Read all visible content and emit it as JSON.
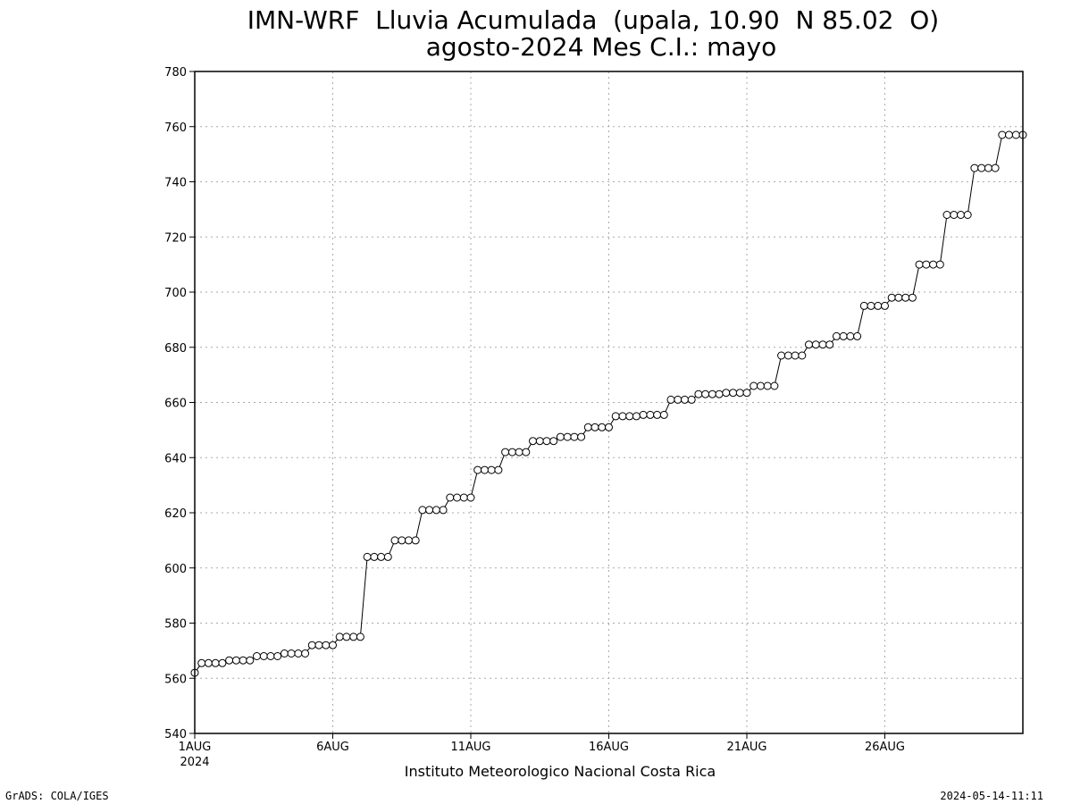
{
  "chart_data": {
    "type": "line",
    "title": "IMN-WRF  Lluvia Acumulada  (upala, 10.90  N 85.02  O)",
    "subtitle": "agosto-2024 Mes C.I.: mayo",
    "xlabel": "Instituto Meteorologico Nacional Costa Rica",
    "ylabel": "",
    "ylim": [
      540,
      780
    ],
    "yticks": [
      540,
      560,
      580,
      600,
      620,
      640,
      660,
      680,
      700,
      720,
      740,
      760,
      780
    ],
    "xlim": [
      1,
      31
    ],
    "xticks": [
      {
        "x": 1,
        "label": "1AUG",
        "sublabel": "2024"
      },
      {
        "x": 6,
        "label": "6AUG"
      },
      {
        "x": 11,
        "label": "11AUG"
      },
      {
        "x": 16,
        "label": "16AUG"
      },
      {
        "x": 21,
        "label": "21AUG"
      },
      {
        "x": 26,
        "label": "26AUG"
      }
    ],
    "grid": true,
    "marker": "open-circle",
    "series": [
      {
        "step": 0.25,
        "x_start": 1,
        "values": [
          562,
          565.5,
          565.5,
          565.5,
          565.5,
          566.5,
          566.5,
          566.5,
          566.5,
          568,
          568,
          568,
          568,
          569,
          569,
          569,
          569,
          572,
          572,
          572,
          572,
          575,
          575,
          575,
          575,
          604,
          604,
          604,
          604,
          610,
          610,
          610,
          610,
          621,
          621,
          621,
          621,
          625.5,
          625.5,
          625.5,
          625.5,
          635.5,
          635.5,
          635.5,
          635.5,
          642,
          642,
          642,
          642,
          646,
          646,
          646,
          646,
          647.5,
          647.5,
          647.5,
          647.5,
          651,
          651,
          651,
          651,
          655,
          655,
          655,
          655,
          655.5,
          655.5,
          655.5,
          655.5,
          661,
          661,
          661,
          661,
          663,
          663,
          663,
          663,
          663.5,
          663.5,
          663.5,
          663.5,
          666,
          666,
          666,
          666,
          677,
          677,
          677,
          677,
          681,
          681,
          681,
          681,
          684,
          684,
          684,
          684,
          695,
          695,
          695,
          695,
          698,
          698,
          698,
          698,
          710,
          710,
          710,
          710,
          728,
          728,
          728,
          728,
          745,
          745,
          745,
          745,
          757,
          757,
          757,
          757
        ]
      }
    ]
  },
  "footer": {
    "left": "GrADS: COLA/IGES",
    "right": "2024-05-14-11:11"
  }
}
